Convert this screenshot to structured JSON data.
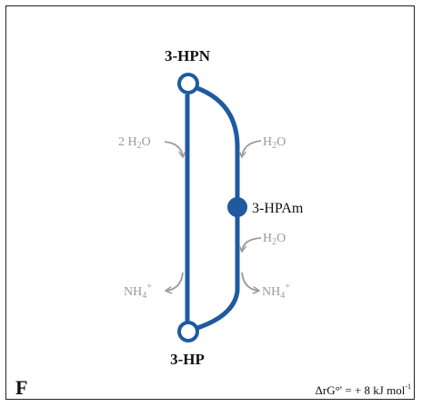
{
  "panel_label": "F",
  "nodes": {
    "top": "3-HPN",
    "bottom": "3-HP",
    "intermediate": "3-HPAm"
  },
  "side_labels": {
    "left_in": {
      "text": "2 H2O",
      "main": "2 H",
      "sub": "2",
      "tail": "O"
    },
    "right_in_top": {
      "text": "H2O",
      "main": "H",
      "sub": "2",
      "tail": "O"
    },
    "right_in_mid": {
      "text": "H2O",
      "main": "H",
      "sub": "2",
      "tail": "O"
    },
    "left_out": {
      "text": "NH4+",
      "main": "NH",
      "sub": "4",
      "sup": "+"
    },
    "right_out": {
      "text": "NH4+",
      "main": "NH",
      "sub": "4",
      "sup": "+"
    }
  },
  "energy": {
    "text": "ΔrG°' = + 8 kJ mol-1",
    "prefix": "ΔrG°' = + 8 kJ mol",
    "sup": "-1"
  },
  "colors": {
    "pathway": "#1f5aa0",
    "cofactor": "#9a9a9a",
    "text": "#111111"
  }
}
